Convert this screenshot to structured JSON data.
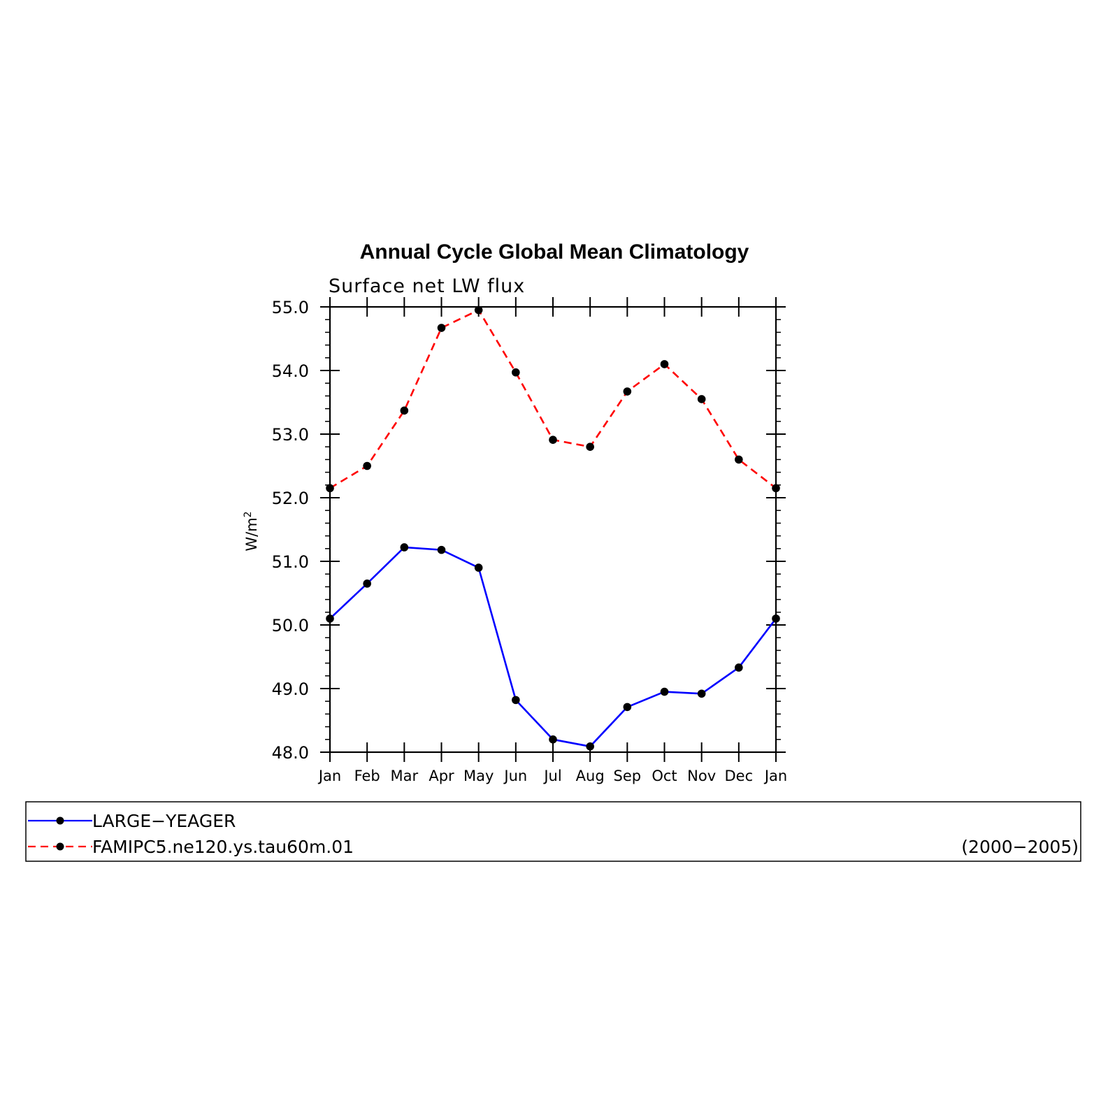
{
  "chart_data": {
    "type": "line",
    "title": "Annual Cycle Global Mean Climatology",
    "subtitle": "Surface net LW flux",
    "ylabel": "W/m",
    "ylabel_sup": "2",
    "xlabel": "",
    "categories": [
      "Jan",
      "Feb",
      "Mar",
      "Apr",
      "May",
      "Jun",
      "Jul",
      "Aug",
      "Sep",
      "Oct",
      "Nov",
      "Dec",
      "Jan"
    ],
    "ylim": [
      48.0,
      55.0
    ],
    "yticks": [
      "48.0",
      "49.0",
      "50.0",
      "51.0",
      "52.0",
      "53.0",
      "54.0",
      "55.0"
    ],
    "grid": false,
    "legend_position": "bottom",
    "series": [
      {
        "name": "LARGE−YEAGER",
        "color": "#0000ff",
        "dash": "solid",
        "values": [
          50.1,
          50.65,
          51.22,
          51.18,
          50.9,
          48.82,
          48.2,
          48.09,
          48.71,
          48.95,
          48.92,
          49.33,
          50.1
        ]
      },
      {
        "name": "FAMIPC5.ne120.ys.tau60m.01",
        "color": "#ff0000",
        "dash": "dashed",
        "values": [
          52.15,
          52.5,
          53.37,
          54.67,
          54.95,
          53.97,
          52.91,
          52.8,
          53.67,
          54.1,
          53.55,
          52.6,
          52.15
        ]
      }
    ],
    "legend_note": "(2000−2005)"
  }
}
